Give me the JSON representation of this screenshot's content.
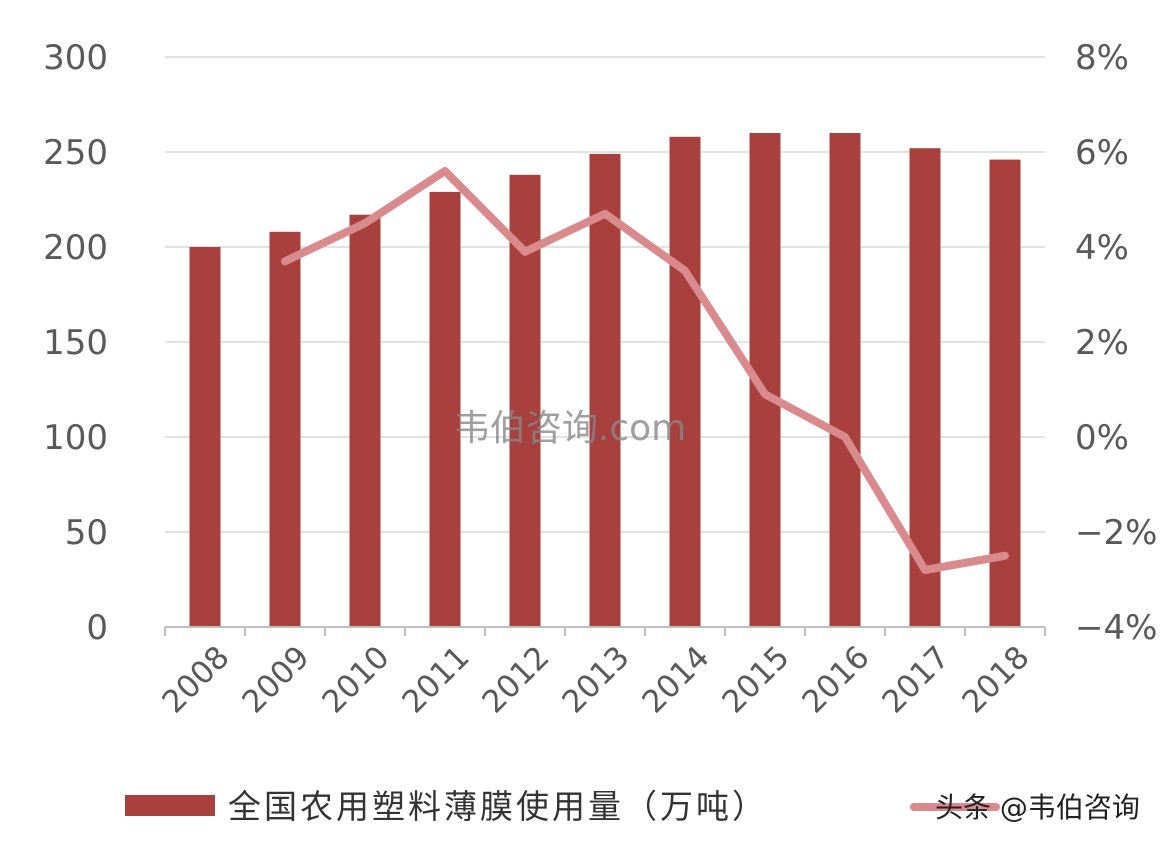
{
  "chart_data": {
    "type": "bar",
    "categories": [
      "2008",
      "2009",
      "2010",
      "2011",
      "2012",
      "2013",
      "2014",
      "2015",
      "2016",
      "2017",
      "2018"
    ],
    "series": [
      {
        "name": "全国农用塑料薄膜使用量（万吨）",
        "type": "bar",
        "axis": "left",
        "values": [
          200,
          208,
          217,
          229,
          238,
          249,
          258,
          260,
          260,
          252,
          246
        ]
      },
      {
        "name": "",
        "type": "line",
        "axis": "right",
        "values": [
          null,
          3.7,
          4.5,
          5.6,
          3.9,
          4.7,
          3.5,
          0.9,
          0.0,
          -2.8,
          -2.5
        ]
      }
    ],
    "ylim": [
      0,
      300
    ],
    "yticks": [
      "300",
      "250",
      "200",
      "150",
      "100",
      "50",
      "0"
    ],
    "y2lim": [
      -4,
      8
    ],
    "y2ticks": [
      "8%",
      "6%",
      "4%",
      "2%",
      "0%",
      "-2%",
      "-4%"
    ],
    "grid": true,
    "legend_position": "bottom",
    "colors": {
      "bar": "#a8403e",
      "line": "#d98a8c"
    }
  },
  "watermark": "韦伯咨询.com",
  "credit": "头条 @韦伯咨询"
}
